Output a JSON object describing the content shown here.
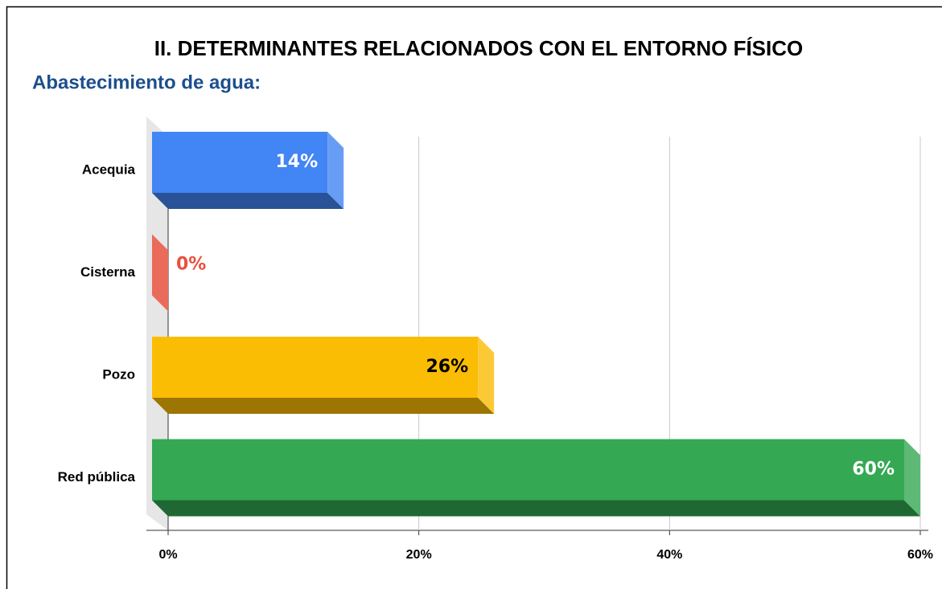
{
  "chart_data": {
    "type": "bar3d",
    "title": "II. DETERMINANTES RELACIONADOS CON EL ENTORNO FÍSICO",
    "subtitle": "Abastecimiento de agua:",
    "categories": [
      "Acequia",
      "Cisterna",
      "Pozo",
      "Red pública"
    ],
    "values": [
      14,
      0,
      26,
      60
    ],
    "value_labels": [
      "14%",
      "0%",
      "26%",
      "60%"
    ],
    "colors": [
      "#4285f4",
      "#ea6b5a",
      "#fbbc04",
      "#34a853"
    ],
    "value_label_colors": [
      "#ffffff",
      "#e8513f",
      "#000000",
      "#ffffff"
    ],
    "xlim": [
      0,
      60
    ],
    "xticks": [
      {
        "value": 0,
        "label": "0%"
      },
      {
        "value": 20,
        "label": "20%"
      },
      {
        "value": 40,
        "label": "40%"
      },
      {
        "value": 60,
        "label": "60%"
      }
    ],
    "grid": true
  }
}
